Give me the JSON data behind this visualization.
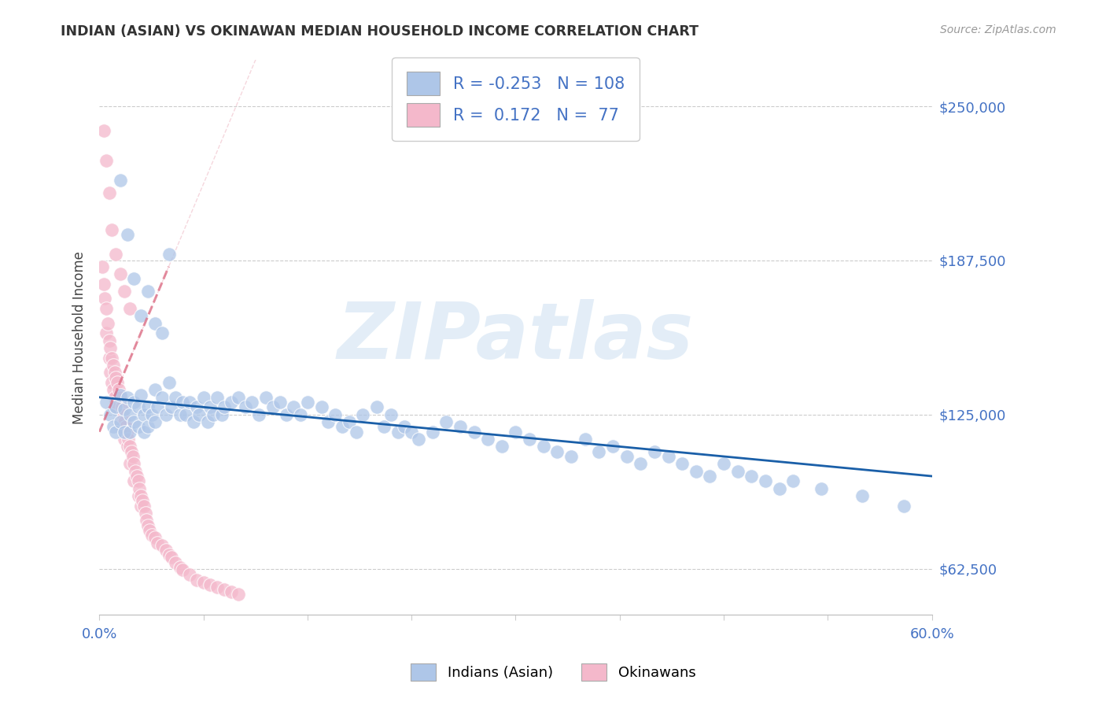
{
  "title": "INDIAN (ASIAN) VS OKINAWAN MEDIAN HOUSEHOLD INCOME CORRELATION CHART",
  "source": "Source: ZipAtlas.com",
  "ylabel": "Median Household Income",
  "xlim": [
    0.0,
    0.6
  ],
  "ylim": [
    43750,
    268750
  ],
  "yticks": [
    62500,
    125000,
    187500,
    250000
  ],
  "ytick_labels": [
    "$62,500",
    "$125,000",
    "$187,500",
    "$250,000"
  ],
  "xticks": [
    0.0,
    0.075,
    0.15,
    0.225,
    0.3,
    0.375,
    0.45,
    0.525,
    0.6
  ],
  "xtick_left_label": "0.0%",
  "xtick_right_label": "60.0%",
  "blue_R": -0.253,
  "blue_N": 108,
  "pink_R": 0.172,
  "pink_N": 77,
  "blue_color": "#aec6e8",
  "pink_color": "#f4b8cb",
  "trend_blue_color": "#1a5fa8",
  "trend_pink_color": "#d9607a",
  "watermark": "ZIPatlas",
  "legend_label_blue": "Indians (Asian)",
  "legend_label_pink": "Okinawans",
  "blue_scatter_x": [
    0.005,
    0.008,
    0.01,
    0.012,
    0.012,
    0.015,
    0.015,
    0.018,
    0.018,
    0.02,
    0.022,
    0.022,
    0.025,
    0.025,
    0.028,
    0.028,
    0.03,
    0.032,
    0.032,
    0.035,
    0.035,
    0.038,
    0.04,
    0.04,
    0.042,
    0.045,
    0.048,
    0.05,
    0.052,
    0.055,
    0.058,
    0.06,
    0.062,
    0.065,
    0.068,
    0.07,
    0.072,
    0.075,
    0.078,
    0.08,
    0.082,
    0.085,
    0.088,
    0.09,
    0.095,
    0.1,
    0.105,
    0.11,
    0.115,
    0.12,
    0.125,
    0.13,
    0.135,
    0.14,
    0.145,
    0.15,
    0.16,
    0.165,
    0.17,
    0.175,
    0.18,
    0.185,
    0.19,
    0.2,
    0.205,
    0.21,
    0.215,
    0.22,
    0.225,
    0.23,
    0.24,
    0.25,
    0.26,
    0.27,
    0.28,
    0.29,
    0.3,
    0.31,
    0.32,
    0.33,
    0.34,
    0.35,
    0.36,
    0.37,
    0.38,
    0.39,
    0.4,
    0.41,
    0.42,
    0.43,
    0.44,
    0.45,
    0.46,
    0.47,
    0.48,
    0.49,
    0.5,
    0.52,
    0.55,
    0.58,
    0.015,
    0.02,
    0.025,
    0.03,
    0.035,
    0.04,
    0.045,
    0.05
  ],
  "blue_scatter_y": [
    130000,
    125000,
    120000,
    128000,
    118000,
    133000,
    122000,
    127000,
    118000,
    132000,
    125000,
    118000,
    130000,
    122000,
    128000,
    120000,
    133000,
    125000,
    118000,
    128000,
    120000,
    125000,
    135000,
    122000,
    128000,
    132000,
    125000,
    138000,
    128000,
    132000,
    125000,
    130000,
    125000,
    130000,
    122000,
    128000,
    125000,
    132000,
    122000,
    128000,
    125000,
    132000,
    125000,
    128000,
    130000,
    132000,
    128000,
    130000,
    125000,
    132000,
    128000,
    130000,
    125000,
    128000,
    125000,
    130000,
    128000,
    122000,
    125000,
    120000,
    122000,
    118000,
    125000,
    128000,
    120000,
    125000,
    118000,
    120000,
    118000,
    115000,
    118000,
    122000,
    120000,
    118000,
    115000,
    112000,
    118000,
    115000,
    112000,
    110000,
    108000,
    115000,
    110000,
    112000,
    108000,
    105000,
    110000,
    108000,
    105000,
    102000,
    100000,
    105000,
    102000,
    100000,
    98000,
    95000,
    98000,
    95000,
    92000,
    88000,
    220000,
    198000,
    180000,
    165000,
    175000,
    162000,
    158000,
    190000
  ],
  "pink_scatter_x": [
    0.002,
    0.003,
    0.004,
    0.005,
    0.005,
    0.006,
    0.007,
    0.007,
    0.008,
    0.008,
    0.009,
    0.009,
    0.01,
    0.01,
    0.011,
    0.011,
    0.012,
    0.012,
    0.013,
    0.013,
    0.014,
    0.015,
    0.015,
    0.016,
    0.016,
    0.017,
    0.018,
    0.018,
    0.019,
    0.02,
    0.02,
    0.021,
    0.022,
    0.022,
    0.023,
    0.024,
    0.025,
    0.025,
    0.026,
    0.027,
    0.028,
    0.028,
    0.029,
    0.03,
    0.03,
    0.031,
    0.032,
    0.033,
    0.034,
    0.035,
    0.036,
    0.038,
    0.04,
    0.042,
    0.045,
    0.048,
    0.05,
    0.052,
    0.055,
    0.058,
    0.06,
    0.065,
    0.07,
    0.075,
    0.08,
    0.085,
    0.09,
    0.095,
    0.1,
    0.003,
    0.005,
    0.007,
    0.009,
    0.012,
    0.015,
    0.018,
    0.022
  ],
  "pink_scatter_y": [
    185000,
    178000,
    172000,
    168000,
    158000,
    162000,
    155000,
    148000,
    152000,
    142000,
    148000,
    138000,
    145000,
    135000,
    142000,
    132000,
    140000,
    130000,
    138000,
    128000,
    135000,
    132000,
    122000,
    128000,
    120000,
    125000,
    122000,
    115000,
    120000,
    118000,
    112000,
    115000,
    112000,
    105000,
    110000,
    108000,
    105000,
    98000,
    102000,
    100000,
    98000,
    92000,
    95000,
    92000,
    88000,
    90000,
    88000,
    85000,
    82000,
    80000,
    78000,
    76000,
    75000,
    73000,
    72000,
    70000,
    68000,
    67000,
    65000,
    63000,
    62000,
    60000,
    58000,
    57000,
    56000,
    55000,
    54000,
    53000,
    52000,
    240000,
    228000,
    215000,
    200000,
    190000,
    182000,
    175000,
    168000
  ]
}
